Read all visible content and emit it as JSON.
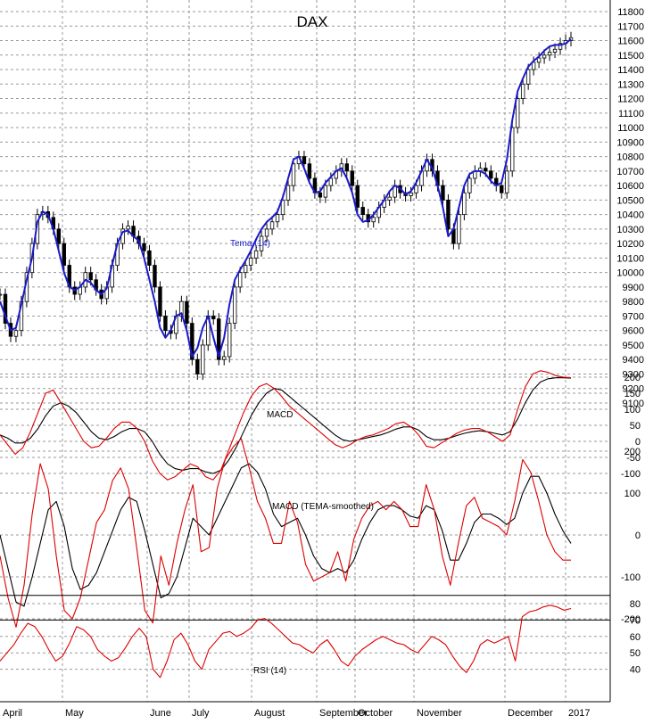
{
  "chart_data": [
    {
      "panel": "price",
      "type": "line",
      "title": "DAX",
      "series_label": "Tema (14)",
      "ylim": [
        9050,
        11850
      ],
      "yticks": [
        9100,
        9200,
        9300,
        9400,
        9500,
        9600,
        9700,
        9800,
        9900,
        10000,
        10100,
        10200,
        10300,
        10400,
        10500,
        10600,
        10700,
        10800,
        10900,
        11000,
        11100,
        11200,
        11300,
        11400,
        11500,
        11600,
        11700,
        11800
      ],
      "grid": true,
      "colors": {
        "price": "#000000",
        "tema": "#1a1acc"
      },
      "close": [
        9850,
        9650,
        9560,
        9600,
        9800,
        10000,
        10200,
        10400,
        10420,
        10380,
        10300,
        10200,
        10050,
        9900,
        9850,
        9900,
        10000,
        9950,
        9880,
        9820,
        9900,
        10050,
        10200,
        10300,
        10320,
        10250,
        10200,
        10150,
        10050,
        9900,
        9700,
        9600,
        9580,
        9700,
        9800,
        9650,
        9400,
        9300,
        9500,
        9700,
        9680,
        9400,
        9420,
        9650,
        9900,
        10000,
        10050,
        10100,
        10150,
        10250,
        10300,
        10350,
        10400,
        10500,
        10600,
        10750,
        10800,
        10750,
        10650,
        10550,
        10520,
        10600,
        10650,
        10700,
        10750,
        10700,
        10600,
        10450,
        10400,
        10350,
        10380,
        10450,
        10500,
        10520,
        10600,
        10550,
        10530,
        10550,
        10600,
        10700,
        10780,
        10700,
        10600,
        10500,
        10300,
        10200,
        10400,
        10550,
        10650,
        10700,
        10720,
        10700,
        10650,
        10600,
        10550,
        10700,
        11000,
        11200,
        11300,
        11400,
        11450,
        11480,
        11500,
        11520,
        11540,
        11580,
        11600,
        11620
      ],
      "tema": [
        9800,
        9700,
        9600,
        9620,
        9780,
        9950,
        10100,
        10350,
        10420,
        10400,
        10300,
        10150,
        10000,
        9900,
        9880,
        9900,
        9950,
        9930,
        9880,
        9850,
        9890,
        10050,
        10200,
        10280,
        10290,
        10250,
        10220,
        10100,
        9950,
        9800,
        9620,
        9550,
        9600,
        9700,
        9720,
        9600,
        9420,
        9480,
        9620,
        9700,
        9550,
        9420,
        9550,
        9780,
        9950,
        10020,
        10080,
        10150,
        10230,
        10300,
        10350,
        10380,
        10420,
        10520,
        10650,
        10780,
        10800,
        10720,
        10620,
        10550,
        10560,
        10620,
        10660,
        10700,
        10720,
        10650,
        10550,
        10400,
        10350,
        10360,
        10400,
        10450,
        10500,
        10560,
        10600,
        10580,
        10540,
        10560,
        10620,
        10700,
        10780,
        10720,
        10600,
        10450,
        10250,
        10300,
        10450,
        10600,
        10680,
        10700,
        10700,
        10680,
        10630,
        10600,
        10620,
        10780,
        11050,
        11250,
        11340,
        11420,
        11460,
        11490,
        11530,
        11560,
        11570,
        11570,
        11580,
        11610
      ]
    },
    {
      "panel": "macd",
      "type": "line",
      "series_label": "MACD",
      "ylim": [
        -150,
        250
      ],
      "yticks": [
        -100,
        -50,
        0,
        50,
        100,
        150,
        200
      ],
      "colors": {
        "macd": "#dd0000",
        "signal": "#000000"
      },
      "macd": [
        20,
        -10,
        -40,
        -20,
        30,
        90,
        150,
        160,
        120,
        80,
        40,
        0,
        -20,
        -15,
        10,
        40,
        60,
        60,
        40,
        0,
        -60,
        -100,
        -120,
        -110,
        -90,
        -70,
        -80,
        -110,
        -120,
        -90,
        -30,
        30,
        90,
        140,
        170,
        180,
        165,
        140,
        110,
        90,
        70,
        50,
        30,
        10,
        -10,
        -20,
        -10,
        5,
        15,
        20,
        30,
        40,
        55,
        60,
        45,
        20,
        -15,
        -20,
        -5,
        10,
        25,
        35,
        40,
        40,
        30,
        15,
        0,
        20,
        100,
        170,
        210,
        220,
        215,
        205,
        200,
        198
      ],
      "signal": [
        20,
        10,
        -5,
        -5,
        10,
        40,
        80,
        110,
        120,
        110,
        90,
        60,
        30,
        10,
        5,
        15,
        30,
        40,
        40,
        30,
        0,
        -40,
        -70,
        -85,
        -90,
        -85,
        -85,
        -95,
        -100,
        -90,
        -60,
        -20,
        30,
        80,
        120,
        150,
        165,
        160,
        140,
        120,
        100,
        80,
        60,
        40,
        20,
        5,
        0,
        5,
        10,
        15,
        20,
        28,
        38,
        45,
        45,
        35,
        15,
        5,
        5,
        10,
        18,
        25,
        30,
        33,
        30,
        25,
        20,
        30,
        70,
        120,
        160,
        185,
        195,
        198,
        198,
        197
      ]
    },
    {
      "panel": "macd_tema",
      "type": "line",
      "series_label": "MACD (TEMA-smoothed)",
      "ylim": [
        -300,
        250
      ],
      "yticks": [
        -200,
        -100,
        0,
        100,
        200
      ],
      "colors": {
        "macd": "#dd0000",
        "signal": "#000000"
      },
      "macd": [
        -50,
        -150,
        -220,
        -120,
        50,
        170,
        110,
        -50,
        -180,
        -200,
        -150,
        -60,
        30,
        60,
        130,
        160,
        110,
        -30,
        -180,
        -210,
        -50,
        -120,
        -20,
        60,
        120,
        -40,
        -30,
        110,
        180,
        210,
        230,
        160,
        80,
        40,
        -20,
        -20,
        80,
        30,
        -70,
        -110,
        -100,
        -90,
        -40,
        -110,
        -10,
        40,
        70,
        80,
        60,
        80,
        60,
        20,
        20,
        120,
        60,
        -50,
        -120,
        -20,
        70,
        90,
        40,
        30,
        20,
        0,
        80,
        180,
        150,
        80,
        0,
        -40,
        -60,
        -60
      ],
      "signal": [
        0,
        -80,
        -160,
        -170,
        -100,
        -20,
        60,
        80,
        20,
        -80,
        -130,
        -120,
        -90,
        -40,
        10,
        60,
        90,
        80,
        10,
        -70,
        -150,
        -140,
        -100,
        -30,
        40,
        20,
        0,
        40,
        80,
        120,
        160,
        170,
        150,
        110,
        50,
        20,
        30,
        40,
        0,
        -50,
        -80,
        -90,
        -80,
        -90,
        -60,
        -10,
        30,
        60,
        70,
        70,
        60,
        45,
        40,
        70,
        60,
        10,
        -60,
        -60,
        -20,
        30,
        50,
        50,
        40,
        25,
        40,
        100,
        140,
        140,
        100,
        50,
        10,
        -20
      ]
    },
    {
      "panel": "rsi",
      "type": "line",
      "series_label": "RSI (14)",
      "ylim": [
        30,
        85
      ],
      "yticks": [
        40,
        50,
        60,
        70,
        80
      ],
      "lines": [
        70,
        85
      ],
      "colors": {
        "rsi": "#dd0000",
        "levels": "#000000"
      },
      "rsi": [
        45,
        50,
        55,
        62,
        68,
        66,
        60,
        52,
        45,
        48,
        56,
        66,
        64,
        60,
        52,
        48,
        45,
        47,
        53,
        60,
        65,
        60,
        40,
        35,
        45,
        58,
        62,
        55,
        45,
        40,
        52,
        57,
        62,
        63,
        60,
        62,
        65,
        70,
        71,
        68,
        64,
        60,
        56,
        55,
        52,
        50,
        55,
        58,
        52,
        45,
        42,
        48,
        52,
        55,
        58,
        60,
        58,
        56,
        55,
        52,
        50,
        55,
        60,
        58,
        55,
        48,
        42,
        38,
        45,
        55,
        58,
        56,
        58,
        60,
        45,
        72,
        75,
        76,
        78,
        79,
        78,
        76,
        77
      ]
    }
  ],
  "month_labels": [
    "April",
    "May",
    "June",
    "July",
    "August",
    "September",
    "October",
    "November",
    "December",
    "2017"
  ]
}
